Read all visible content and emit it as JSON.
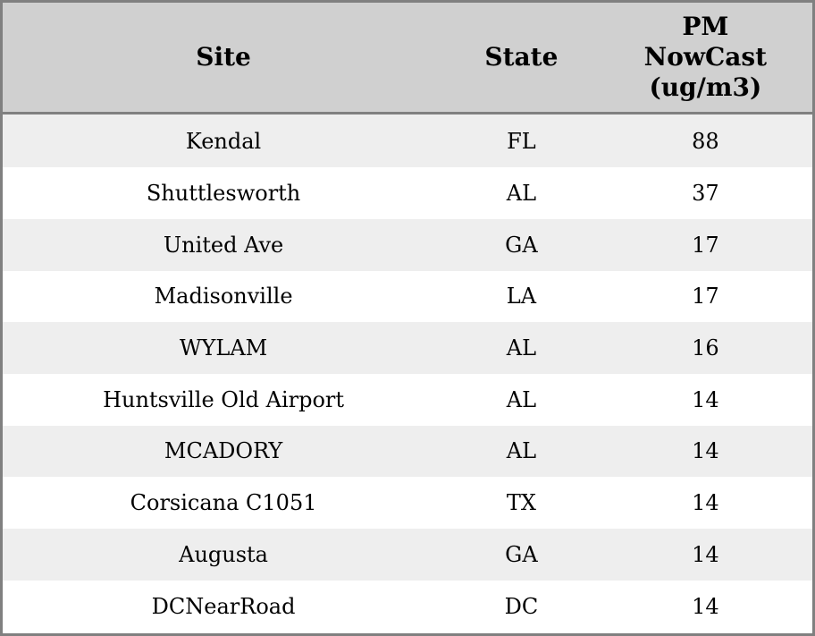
{
  "chart_data": {
    "type": "table",
    "columns": [
      {
        "label": "Site"
      },
      {
        "label": "State"
      },
      {
        "label": "PM NowCast (ug/m3)",
        "lines": [
          "PM",
          "NowCast",
          "(ug/m3)"
        ]
      }
    ],
    "rows": [
      {
        "site": "Kendal",
        "state": "FL",
        "pm_nowcast": "88"
      },
      {
        "site": "Shuttlesworth",
        "state": "AL",
        "pm_nowcast": "37"
      },
      {
        "site": "United Ave",
        "state": "GA",
        "pm_nowcast": "17"
      },
      {
        "site": "Madisonville",
        "state": "LA",
        "pm_nowcast": "17"
      },
      {
        "site": "WYLAM",
        "state": "AL",
        "pm_nowcast": "16"
      },
      {
        "site": "Huntsville Old Airport",
        "state": "AL",
        "pm_nowcast": "14"
      },
      {
        "site": "MCADORY",
        "state": "AL",
        "pm_nowcast": "14"
      },
      {
        "site": "Corsicana C1051",
        "state": "TX",
        "pm_nowcast": "14"
      },
      {
        "site": "Augusta",
        "state": "GA",
        "pm_nowcast": "14"
      },
      {
        "site": "DCNearRoad",
        "state": "DC",
        "pm_nowcast": "14"
      }
    ],
    "colors": {
      "header_bg": "#d0d0d0",
      "row_stripe_bg": "#eeeeee",
      "row_bg": "#ffffff",
      "border": "#808080",
      "text": "#000000"
    }
  }
}
